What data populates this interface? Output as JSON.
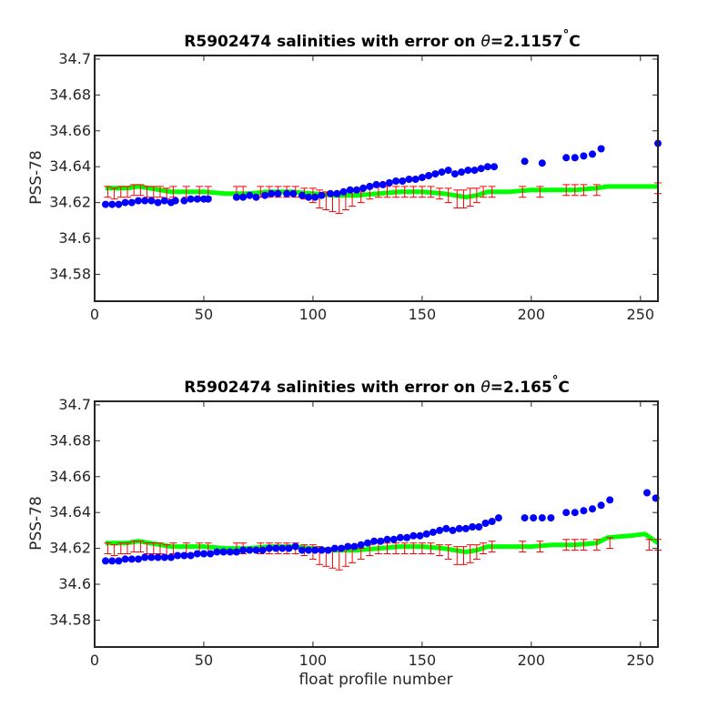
{
  "chart_data": [
    {
      "type": "scatter",
      "title_prefix": "R5902474 salinities with error on ",
      "title_theta": "θ",
      "title_value": "=2.1157",
      "title_degree": "°",
      "title_unit": "C",
      "ylabel": "PSS-78",
      "xlabel": "",
      "xlim": [
        0,
        258
      ],
      "ylim": [
        34.565,
        34.702
      ],
      "xticks": [
        "0",
        "50",
        "100",
        "150",
        "200",
        "250"
      ],
      "yticks": [
        "34.58",
        "34.6",
        "34.62",
        "34.64",
        "34.66",
        "34.68",
        "34.7"
      ],
      "colors": {
        "float": "#0000ff",
        "mapped": "#00ff00",
        "error": "#ff0000"
      },
      "float_salinity": {
        "x": [
          5,
          8,
          11,
          14,
          17,
          20,
          23,
          26,
          29,
          32,
          35,
          37,
          41,
          44,
          47,
          50,
          52,
          65,
          68,
          71,
          74,
          78,
          81,
          84,
          88,
          91,
          95,
          98,
          101,
          104,
          108,
          111,
          114,
          117,
          120,
          123,
          126,
          129,
          132,
          135,
          138,
          141,
          144,
          147,
          150,
          153,
          156,
          159,
          162,
          165,
          168,
          171,
          174,
          177,
          180,
          183,
          197,
          205,
          216,
          220,
          224,
          228,
          232,
          258
        ],
        "y": [
          34.619,
          34.619,
          34.619,
          34.62,
          34.62,
          34.621,
          34.621,
          34.621,
          34.62,
          34.621,
          34.62,
          34.621,
          34.621,
          34.622,
          34.622,
          34.622,
          34.622,
          34.623,
          34.623,
          34.624,
          34.623,
          34.624,
          34.625,
          34.625,
          34.625,
          34.625,
          34.624,
          34.623,
          34.623,
          34.624,
          34.625,
          34.625,
          34.626,
          34.627,
          34.627,
          34.628,
          34.629,
          34.63,
          34.63,
          34.631,
          34.632,
          34.632,
          34.633,
          34.633,
          34.634,
          34.635,
          34.636,
          34.637,
          34.638,
          34.636,
          34.637,
          34.638,
          34.638,
          34.639,
          34.64,
          34.64,
          34.643,
          34.642,
          34.645,
          34.645,
          34.646,
          34.647,
          34.65,
          34.653
        ]
      },
      "mapped_salinity": {
        "x": [
          5,
          10,
          15,
          20,
          25,
          30,
          35,
          40,
          50,
          60,
          70,
          80,
          90,
          100,
          110,
          120,
          130,
          140,
          150,
          160,
          165,
          170,
          175,
          180,
          190,
          200,
          210,
          220,
          230,
          235,
          245,
          258
        ],
        "y": [
          34.628,
          34.628,
          34.628,
          34.629,
          34.628,
          34.627,
          34.626,
          34.626,
          34.626,
          34.625,
          34.625,
          34.626,
          34.626,
          34.625,
          34.624,
          34.624,
          34.625,
          34.626,
          34.626,
          34.625,
          34.624,
          34.623,
          34.624,
          34.626,
          34.626,
          34.627,
          34.627,
          34.627,
          34.628,
          34.629,
          34.629,
          34.629
        ]
      },
      "error_bars": {
        "x": [
          6,
          9,
          12,
          15,
          18,
          21,
          24,
          27,
          30,
          33,
          36,
          42,
          48,
          52,
          65,
          68,
          76,
          80,
          84,
          88,
          92,
          96,
          100,
          103,
          106,
          109,
          112,
          115,
          118,
          122,
          126,
          130,
          134,
          138,
          142,
          146,
          150,
          154,
          158,
          162,
          166,
          169,
          172,
          175,
          178,
          182,
          196,
          204,
          216,
          220,
          224,
          230,
          258
        ],
        "y": [
          34.626,
          34.625,
          34.626,
          34.626,
          34.627,
          34.627,
          34.626,
          34.626,
          34.626,
          34.625,
          34.626,
          34.626,
          34.626,
          34.626,
          34.626,
          34.626,
          34.626,
          34.626,
          34.626,
          34.626,
          34.626,
          34.625,
          34.624,
          34.622,
          34.621,
          34.62,
          34.62,
          34.621,
          34.622,
          34.623,
          34.625,
          34.626,
          34.626,
          34.626,
          34.626,
          34.626,
          34.626,
          34.626,
          34.625,
          34.624,
          34.622,
          34.622,
          34.623,
          34.624,
          34.626,
          34.626,
          34.626,
          34.626,
          34.627,
          34.627,
          34.627,
          34.627,
          34.628
        ],
        "err": [
          0.003,
          0.003,
          0.003,
          0.003,
          0.003,
          0.003,
          0.003,
          0.003,
          0.003,
          0.003,
          0.003,
          0.003,
          0.003,
          0.003,
          0.003,
          0.003,
          0.003,
          0.003,
          0.003,
          0.003,
          0.003,
          0.003,
          0.004,
          0.005,
          0.005,
          0.005,
          0.006,
          0.005,
          0.004,
          0.003,
          0.003,
          0.003,
          0.003,
          0.003,
          0.003,
          0.003,
          0.003,
          0.003,
          0.003,
          0.004,
          0.005,
          0.005,
          0.005,
          0.004,
          0.003,
          0.003,
          0.003,
          0.003,
          0.003,
          0.003,
          0.003,
          0.003,
          0.003
        ]
      }
    },
    {
      "type": "scatter",
      "title_prefix": "R5902474 salinities with error on ",
      "title_theta": "θ",
      "title_value": "=2.165",
      "title_degree": "°",
      "title_unit": "C",
      "ylabel": "PSS-78",
      "xlabel": "float profile number",
      "xlim": [
        0,
        258
      ],
      "ylim": [
        34.565,
        34.702
      ],
      "xticks": [
        "0",
        "50",
        "100",
        "150",
        "200",
        "250"
      ],
      "yticks": [
        "34.58",
        "34.6",
        "34.62",
        "34.64",
        "34.66",
        "34.68",
        "34.7"
      ],
      "colors": {
        "float": "#0000ff",
        "mapped": "#00ff00",
        "error": "#ff0000"
      },
      "float_salinity": {
        "x": [
          5,
          8,
          11,
          14,
          17,
          20,
          23,
          26,
          29,
          32,
          35,
          38,
          41,
          44,
          47,
          50,
          53,
          56,
          59,
          62,
          65,
          68,
          71,
          74,
          77,
          80,
          83,
          86,
          89,
          92,
          95,
          98,
          101,
          104,
          107,
          110,
          113,
          116,
          119,
          122,
          125,
          128,
          131,
          134,
          137,
          140,
          143,
          146,
          149,
          152,
          155,
          158,
          161,
          164,
          167,
          170,
          173,
          176,
          179,
          182,
          185,
          197,
          201,
          205,
          209,
          216,
          220,
          224,
          228,
          232,
          236,
          253,
          257
        ],
        "y": [
          34.613,
          34.613,
          34.613,
          34.614,
          34.614,
          34.614,
          34.615,
          34.615,
          34.615,
          34.615,
          34.615,
          34.616,
          34.616,
          34.616,
          34.617,
          34.617,
          34.617,
          34.618,
          34.618,
          34.618,
          34.618,
          34.619,
          34.619,
          34.619,
          34.619,
          34.62,
          34.62,
          34.62,
          34.62,
          34.621,
          34.619,
          34.619,
          34.619,
          34.619,
          34.619,
          34.62,
          34.62,
          34.621,
          34.621,
          34.622,
          34.623,
          34.624,
          34.624,
          34.625,
          34.625,
          34.626,
          34.626,
          34.627,
          34.627,
          34.628,
          34.629,
          34.63,
          34.631,
          34.63,
          34.631,
          34.631,
          34.632,
          34.632,
          34.634,
          34.635,
          34.637,
          34.637,
          34.637,
          34.637,
          34.637,
          34.64,
          34.64,
          34.641,
          34.642,
          34.644,
          34.647,
          34.651,
          34.648
        ]
      },
      "mapped_salinity": {
        "x": [
          5,
          10,
          15,
          20,
          25,
          30,
          35,
          40,
          50,
          60,
          70,
          80,
          90,
          100,
          110,
          120,
          130,
          140,
          150,
          160,
          165,
          170,
          175,
          180,
          190,
          200,
          210,
          220,
          230,
          235,
          245,
          252,
          258
        ],
        "y": [
          34.623,
          34.623,
          34.623,
          34.624,
          34.623,
          34.622,
          34.621,
          34.621,
          34.621,
          34.62,
          34.62,
          34.621,
          34.621,
          34.62,
          34.619,
          34.619,
          34.62,
          34.621,
          34.621,
          34.62,
          34.619,
          34.618,
          34.619,
          34.621,
          34.621,
          34.621,
          34.622,
          34.622,
          34.623,
          34.626,
          34.627,
          34.628,
          34.623
        ]
      },
      "error_bars": {
        "x": [
          6,
          9,
          12,
          15,
          18,
          21,
          24,
          27,
          30,
          33,
          36,
          42,
          48,
          52,
          65,
          68,
          76,
          80,
          84,
          88,
          92,
          96,
          100,
          103,
          106,
          109,
          112,
          115,
          118,
          122,
          126,
          130,
          134,
          138,
          142,
          146,
          150,
          154,
          158,
          162,
          166,
          169,
          172,
          175,
          178,
          182,
          196,
          204,
          216,
          220,
          224,
          230,
          236,
          254,
          258
        ],
        "y": [
          34.62,
          34.619,
          34.62,
          34.62,
          34.621,
          34.621,
          34.62,
          34.62,
          34.62,
          34.619,
          34.62,
          34.62,
          34.62,
          34.62,
          34.62,
          34.62,
          34.62,
          34.62,
          34.62,
          34.62,
          34.62,
          34.619,
          34.618,
          34.616,
          34.615,
          34.614,
          34.614,
          34.615,
          34.616,
          34.617,
          34.619,
          34.62,
          34.62,
          34.62,
          34.62,
          34.62,
          34.62,
          34.62,
          34.619,
          34.618,
          34.616,
          34.616,
          34.617,
          34.618,
          34.62,
          34.621,
          34.621,
          34.621,
          34.622,
          34.622,
          34.622,
          34.622,
          34.623,
          34.622,
          34.622
        ],
        "err": [
          0.003,
          0.003,
          0.003,
          0.003,
          0.003,
          0.003,
          0.003,
          0.003,
          0.003,
          0.003,
          0.003,
          0.003,
          0.003,
          0.003,
          0.003,
          0.003,
          0.003,
          0.003,
          0.003,
          0.003,
          0.003,
          0.003,
          0.004,
          0.005,
          0.005,
          0.005,
          0.006,
          0.005,
          0.004,
          0.003,
          0.003,
          0.003,
          0.003,
          0.003,
          0.003,
          0.003,
          0.003,
          0.003,
          0.003,
          0.004,
          0.005,
          0.005,
          0.005,
          0.004,
          0.003,
          0.003,
          0.003,
          0.003,
          0.003,
          0.003,
          0.003,
          0.003,
          0.003,
          0.003,
          0.003
        ]
      }
    }
  ]
}
